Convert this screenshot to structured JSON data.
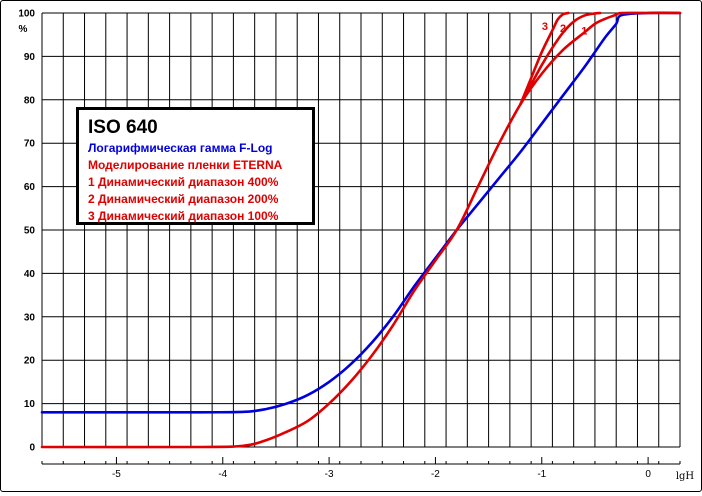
{
  "chart_data": {
    "type": "line",
    "title": "ISO 640",
    "xlabel": "lgH",
    "ylabel": "%",
    "xlim": [
      -5.7,
      0.3
    ],
    "ylim": [
      0,
      100
    ],
    "x_ticks": [
      "-5",
      "-4",
      "-3",
      "-2",
      "-1",
      "0"
    ],
    "x_tick_values": [
      -5,
      -4,
      -3,
      -2,
      -1,
      0
    ],
    "y_ticks": [
      "0",
      "10",
      "20",
      "30",
      "40",
      "50",
      "60",
      "70",
      "80",
      "90",
      "100"
    ],
    "y_tick_values": [
      0,
      10,
      20,
      30,
      40,
      50,
      60,
      70,
      80,
      90,
      100
    ],
    "grid": true,
    "legend": {
      "position": "upper-left",
      "title": "ISO 640",
      "items": [
        {
          "label": "Логарифмическая гамма F-Log",
          "color": "#0000dd"
        },
        {
          "label": "Моделирование пленки ETERNA",
          "color": "#e00000"
        },
        {
          "label": "1 Динамический диапазон 400%",
          "color": "#e00000"
        },
        {
          "label": "2 Динамический диапазон 200%",
          "color": "#e00000"
        },
        {
          "label": "3 Динамический диапазон 100%",
          "color": "#e00000"
        }
      ]
    },
    "curve_labels": [
      {
        "text": "3",
        "x": -0.97,
        "y": 97
      },
      {
        "text": "2",
        "x": -0.8,
        "y": 96.6
      },
      {
        "text": "1",
        "x": -0.6,
        "y": 96
      }
    ],
    "series": [
      {
        "color": "#0000dd",
        "x": [
          -5.7,
          -4.2,
          -3.8,
          -3.6,
          -3.4,
          -3.2,
          -3.0,
          -2.8,
          -2.6,
          -2.4,
          -2.2,
          -2.0,
          -1.8,
          -1.6,
          -1.4,
          -1.2,
          -1.0,
          -0.8,
          -0.6,
          -0.5,
          -0.4,
          -0.3,
          -0.25,
          0.0,
          0.3
        ],
        "y": [
          8,
          8,
          8.1,
          8.7,
          10,
          12,
          15,
          19,
          24,
          30,
          37,
          43.5,
          50,
          56,
          62,
          68,
          74.5,
          81,
          87.5,
          91,
          94.5,
          97.5,
          99.5,
          100,
          100
        ]
      },
      {
        "color": "#e00000",
        "x": [
          -5.7,
          -4.2,
          -3.8,
          -3.6,
          -3.4,
          -3.2,
          -3.0,
          -2.8,
          -2.6,
          -2.4,
          -2.2,
          -2.0,
          -1.8,
          -1.6,
          -1.4,
          -1.2,
          -1.0,
          -0.8,
          -0.6,
          -0.5,
          -0.4,
          -0.3,
          -0.25,
          0.0,
          0.3
        ],
        "y": [
          0,
          0,
          0.3,
          1.5,
          3.5,
          6,
          10,
          15,
          21,
          28,
          36,
          43,
          50,
          60,
          70,
          79,
          86,
          91.5,
          95.5,
          97.5,
          98.7,
          99.6,
          100,
          100,
          100
        ]
      },
      {
        "color": "#e00000",
        "x": [
          -1.2,
          -1.1,
          -1.0,
          -0.9,
          -0.8,
          -0.7,
          -0.6,
          -0.5,
          -0.45
        ],
        "y": [
          79,
          83.5,
          88,
          92,
          95.5,
          98,
          99.4,
          99.9,
          100
        ]
      },
      {
        "color": "#e00000",
        "x": [
          -1.2,
          -1.1,
          -1.0,
          -0.9,
          -0.85,
          -0.8,
          -0.75
        ],
        "y": [
          79,
          85,
          91,
          96,
          98.5,
          99.7,
          100
        ]
      }
    ]
  }
}
